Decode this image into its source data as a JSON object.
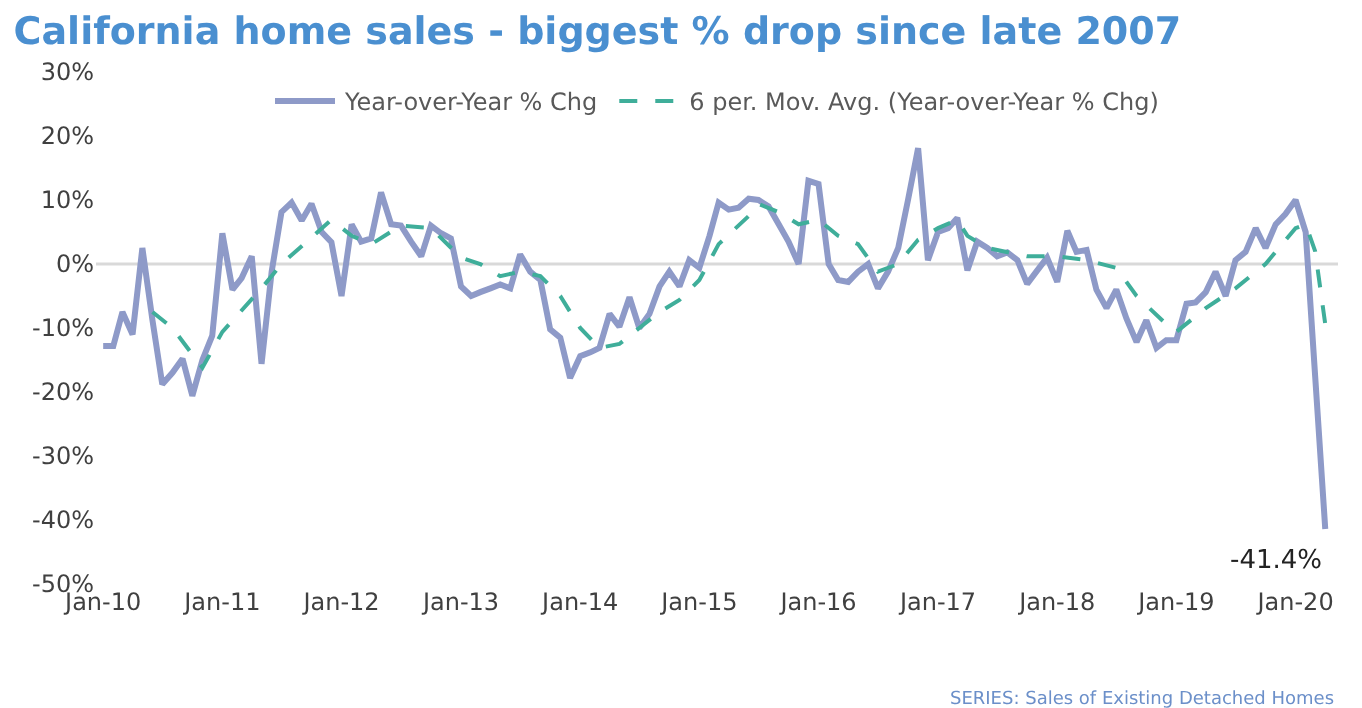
{
  "chart_data": {
    "type": "line",
    "title": "California home sales - biggest % drop since late 2007",
    "x": [
      "2010-01",
      "2010-02",
      "2010-03",
      "2010-04",
      "2010-05",
      "2010-06",
      "2010-07",
      "2010-08",
      "2010-09",
      "2010-10",
      "2010-11",
      "2010-12",
      "2011-01",
      "2011-02",
      "2011-03",
      "2011-04",
      "2011-05",
      "2011-06",
      "2011-07",
      "2011-08",
      "2011-09",
      "2011-10",
      "2011-11",
      "2011-12",
      "2012-01",
      "2012-02",
      "2012-03",
      "2012-04",
      "2012-05",
      "2012-06",
      "2012-07",
      "2012-08",
      "2012-09",
      "2012-10",
      "2012-11",
      "2012-12",
      "2013-01",
      "2013-02",
      "2013-03",
      "2013-04",
      "2013-05",
      "2013-06",
      "2013-07",
      "2013-08",
      "2013-09",
      "2013-10",
      "2013-11",
      "2013-12",
      "2014-01",
      "2014-02",
      "2014-03",
      "2014-04",
      "2014-05",
      "2014-06",
      "2014-07",
      "2014-08",
      "2014-09",
      "2014-10",
      "2014-11",
      "2014-12",
      "2015-01",
      "2015-02",
      "2015-03",
      "2015-04",
      "2015-05",
      "2015-06",
      "2015-07",
      "2015-08",
      "2015-09",
      "2015-10",
      "2015-11",
      "2015-12",
      "2016-01",
      "2016-02",
      "2016-03",
      "2016-04",
      "2016-05",
      "2016-06",
      "2016-07",
      "2016-08",
      "2016-09",
      "2016-10",
      "2016-11",
      "2016-12",
      "2017-01",
      "2017-02",
      "2017-03",
      "2017-04",
      "2017-05",
      "2017-06",
      "2017-07",
      "2017-08",
      "2017-09",
      "2017-10",
      "2017-11",
      "2017-12",
      "2018-01",
      "2018-02",
      "2018-03",
      "2018-04",
      "2018-05",
      "2018-06",
      "2018-07",
      "2018-08",
      "2018-09",
      "2018-10",
      "2018-11",
      "2018-12",
      "2019-01",
      "2019-02",
      "2019-03",
      "2019-04",
      "2019-05",
      "2019-06",
      "2019-07",
      "2019-08",
      "2019-09",
      "2019-10",
      "2019-11",
      "2019-12",
      "2020-01",
      "2020-02",
      "2020-03",
      "2020-04"
    ],
    "series": [
      {
        "name": "Year-over-Year % Chg",
        "color": "#8e9ac8",
        "line_style": "solid",
        "values": [
          -12.8,
          -12.8,
          -7.5,
          -11,
          2.5,
          -8.8,
          -18.8,
          -17,
          -14.8,
          -20.6,
          -15,
          -11.2,
          4.8,
          -4,
          -2.2,
          1.2,
          -15.6,
          -1.2,
          8.1,
          9.6,
          6.8,
          9.4,
          5,
          3.4,
          -5,
          6.2,
          3.5,
          4,
          11.2,
          6.2,
          6,
          3.5,
          1.2,
          6,
          4.8,
          4,
          -3.5,
          -5,
          -4.4,
          -3.8,
          -3.2,
          -3.8,
          1.5,
          -1.2,
          -2.5,
          -10.2,
          -11.5,
          -17.8,
          -14.4,
          -13.8,
          -13.1,
          -7.8,
          -9.8,
          -5.2,
          -10,
          -7.8,
          -3.5,
          -1.2,
          -3.5,
          0.6,
          -0.6,
          4.4,
          9.6,
          8.5,
          8.8,
          10.2,
          10,
          9,
          6.2,
          3.5,
          0,
          13,
          12.5,
          0,
          -2.5,
          -2.8,
          -1.2,
          0,
          -3.8,
          -1.2,
          2.5,
          10,
          18.1,
          0.6,
          5,
          5.6,
          7.2,
          -1,
          3.5,
          2.5,
          1.2,
          1.8,
          0.6,
          -3.1,
          -1,
          1,
          -2.8,
          5.2,
          1.9,
          2.2,
          -4,
          -6.9,
          -4,
          -8.5,
          -12.2,
          -8.8,
          -13.1,
          -11.9,
          -11.9,
          -6.2,
          -6,
          -4.4,
          -1.2,
          -5,
          0.6,
          1.9,
          5.6,
          2.5,
          6.2,
          7.8,
          10,
          5,
          -17.5,
          -41.4
        ]
      },
      {
        "name": "6 per. Mov. Avg. (Year-over-Year % Chg)",
        "color": "#3fae9a",
        "line_style": "dashed",
        "x": [
          "2010-06",
          "2010-08",
          "2010-11",
          "2011-01",
          "2011-05",
          "2011-07",
          "2011-12",
          "2012-02",
          "2012-04",
          "2012-07",
          "2012-10",
          "2013-01",
          "2013-03",
          "2013-05",
          "2013-07",
          "2013-09",
          "2013-11",
          "2014-01",
          "2014-03",
          "2014-05",
          "2014-07",
          "2014-09",
          "2014-11",
          "2015-01",
          "2015-03",
          "2015-06",
          "2015-07",
          "2015-09",
          "2015-11",
          "2016-01",
          "2016-03",
          "2016-05",
          "2016-07",
          "2016-09",
          "2016-11",
          "2017-01",
          "2017-03",
          "2017-04",
          "2017-06",
          "2017-10",
          "2018-01",
          "2018-04",
          "2018-07",
          "2018-09",
          "2018-12",
          "2019-01",
          "2019-04",
          "2019-07",
          "2019-10",
          "2020-01",
          "2020-02",
          "2020-03",
          "2020-04"
        ],
        "values": [
          -7.5,
          -10,
          -16.2,
          -10.6,
          -3.8,
          0,
          6.9,
          4.4,
          3.1,
          6,
          5.6,
          1,
          0,
          -1.9,
          -1.2,
          -1.9,
          -5,
          -10,
          -13.1,
          -12.5,
          -10,
          -7.5,
          -5.6,
          -2.5,
          3.1,
          7.5,
          9.4,
          8.1,
          6.2,
          6.9,
          4.4,
          3.1,
          -1.2,
          0,
          3.8,
          5.6,
          6.9,
          4.4,
          2.5,
          1.2,
          1.2,
          0.6,
          -0.6,
          -5,
          -9.4,
          -10.6,
          -6.9,
          -3.8,
          0,
          5.6,
          6.2,
          2,
          -9.4
        ]
      }
    ],
    "xlim": [
      "2009-12-10",
      "2020-05-10"
    ],
    "xticks": [
      {
        "value": "2010-01-01",
        "label": "Jan-10"
      },
      {
        "value": "2011-01-01",
        "label": "Jan-11"
      },
      {
        "value": "2012-01-01",
        "label": "Jan-12"
      },
      {
        "value": "2013-01-01",
        "label": "Jan-13"
      },
      {
        "value": "2014-01-01",
        "label": "Jan-14"
      },
      {
        "value": "2015-01-01",
        "label": "Jan-15"
      },
      {
        "value": "2016-01-01",
        "label": "Jan-16"
      },
      {
        "value": "2017-01-01",
        "label": "Jan-17"
      },
      {
        "value": "2018-01-01",
        "label": "Jan-18"
      },
      {
        "value": "2019-01-01",
        "label": "Jan-19"
      },
      {
        "value": "2020-01-01",
        "label": "Jan-20"
      }
    ],
    "ylim": [
      -50,
      30
    ],
    "yticks": [
      {
        "value": -50,
        "label": "-50%"
      },
      {
        "value": -40,
        "label": "-40%"
      },
      {
        "value": -30,
        "label": "-30%"
      },
      {
        "value": -20,
        "label": "-20%"
      },
      {
        "value": -10,
        "label": "-10%"
      },
      {
        "value": 0,
        "label": "0%"
      },
      {
        "value": 10,
        "label": "10%"
      },
      {
        "value": 20,
        "label": "20%"
      },
      {
        "value": 30,
        "label": "30%"
      }
    ],
    "ref_lines": [
      {
        "axis": "y",
        "value": 0,
        "color": "#d9d9d9"
      }
    ],
    "annotations": [
      {
        "text": "-41.4%",
        "x": "2020-04",
        "y": -41.4
      },
      "SERIES: Sales of Existing Detached Homes"
    ],
    "legend": "top",
    "grid": false
  }
}
